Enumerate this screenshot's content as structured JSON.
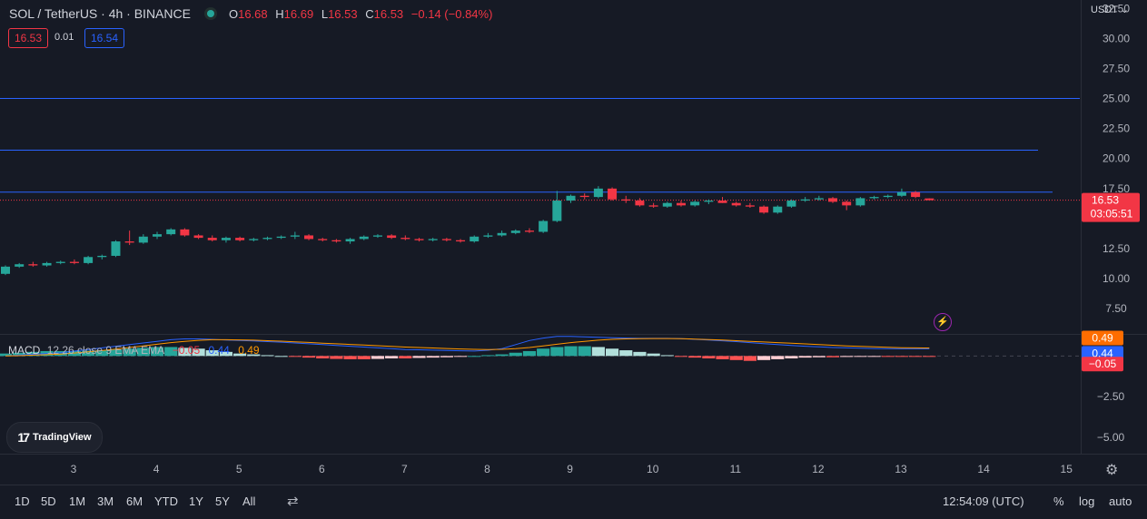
{
  "header": {
    "symbol": "SOL / TetherUS · 4h · BINANCE",
    "ohlc": {
      "o_key": "O",
      "o_val": "16.68",
      "h_key": "H",
      "h_val": "16.69",
      "l_key": "L",
      "l_val": "16.53",
      "c_key": "C",
      "c_val": "16.53",
      "change": "−0.14 (−0.84%)"
    },
    "bid": "16.53",
    "spread": "0.01",
    "ask": "16.54"
  },
  "currency_label": "USDT ⌄",
  "last_price_label": "16.53",
  "countdown_label": "03:05:51",
  "macd": {
    "title": "MACD",
    "params": "12 26 close 9 EMA EMA",
    "hist_value": "−0.05",
    "macd_value": "0.44",
    "signal_value": "0.49",
    "label_signal": "0.49",
    "label_macd": "0.44",
    "label_hist": "−0.05"
  },
  "watermark": "TradingView",
  "bottom_bar": {
    "ranges": [
      "1D",
      "5D",
      "1M",
      "3M",
      "6M",
      "YTD",
      "1Y",
      "5Y",
      "All"
    ],
    "clock": "12:54:09 (UTC)",
    "percent": "%",
    "log": "log",
    "auto": "auto"
  },
  "colors": {
    "up": "#26a69a",
    "down": "#f23645",
    "hline": "#2962ff",
    "macd_line": "#2962ff",
    "signal_line": "#ff9800",
    "background": "#161a25"
  },
  "icons": [
    "lightning-icon",
    "gear-icon",
    "calendar-range-icon",
    "tradingview-logo-icon"
  ],
  "chart_data": {
    "type": "candlestick",
    "timeframe": "4h",
    "x_ticks": [
      "3",
      "4",
      "5",
      "6",
      "7",
      "8",
      "9",
      "10",
      "11",
      "12",
      "13",
      "14",
      "15"
    ],
    "y_ticks": [
      "32.50",
      "30.00",
      "27.50",
      "25.00",
      "22.50",
      "20.00",
      "17.50",
      "12.50",
      "10.00",
      "7.50"
    ],
    "ylim": [
      5.4,
      33.2
    ],
    "horizontal_levels": [
      25.0,
      20.7,
      17.2
    ],
    "candles": [
      [
        10.4,
        11.1,
        10.3,
        11.0
      ],
      [
        11.0,
        11.3,
        10.9,
        11.2
      ],
      [
        11.2,
        11.4,
        11.0,
        11.1
      ],
      [
        11.1,
        11.4,
        11.0,
        11.3
      ],
      [
        11.3,
        11.5,
        11.2,
        11.4
      ],
      [
        11.4,
        11.6,
        11.2,
        11.3
      ],
      [
        11.3,
        11.9,
        11.2,
        11.8
      ],
      [
        11.8,
        12.0,
        11.6,
        11.9
      ],
      [
        11.9,
        13.2,
        11.8,
        13.1
      ],
      [
        13.1,
        14.0,
        12.8,
        13.0
      ],
      [
        13.0,
        13.7,
        12.9,
        13.5
      ],
      [
        13.5,
        13.9,
        13.3,
        13.7
      ],
      [
        13.7,
        14.2,
        13.6,
        14.1
      ],
      [
        14.1,
        14.2,
        13.5,
        13.6
      ],
      [
        13.6,
        13.7,
        13.3,
        13.4
      ],
      [
        13.4,
        13.6,
        13.1,
        13.2
      ],
      [
        13.2,
        13.5,
        13.0,
        13.4
      ],
      [
        13.4,
        13.5,
        13.1,
        13.2
      ],
      [
        13.2,
        13.4,
        13.1,
        13.3
      ],
      [
        13.3,
        13.5,
        13.2,
        13.4
      ],
      [
        13.4,
        13.6,
        13.3,
        13.5
      ],
      [
        13.5,
        13.9,
        13.3,
        13.6
      ],
      [
        13.6,
        13.7,
        13.2,
        13.3
      ],
      [
        13.3,
        13.4,
        13.1,
        13.2
      ],
      [
        13.2,
        13.3,
        13.0,
        13.1
      ],
      [
        13.1,
        13.4,
        12.9,
        13.3
      ],
      [
        13.3,
        13.6,
        13.2,
        13.5
      ],
      [
        13.5,
        13.7,
        13.4,
        13.6
      ],
      [
        13.6,
        13.7,
        13.3,
        13.4
      ],
      [
        13.4,
        13.6,
        13.2,
        13.3
      ],
      [
        13.3,
        13.4,
        13.1,
        13.2
      ],
      [
        13.2,
        13.4,
        13.1,
        13.3
      ],
      [
        13.3,
        13.4,
        13.1,
        13.2
      ],
      [
        13.2,
        13.3,
        13.0,
        13.1
      ],
      [
        13.1,
        13.6,
        13.0,
        13.5
      ],
      [
        13.5,
        13.8,
        13.4,
        13.6
      ],
      [
        13.6,
        14.0,
        13.5,
        13.8
      ],
      [
        13.8,
        14.1,
        13.7,
        14.0
      ],
      [
        14.0,
        14.2,
        13.8,
        13.9
      ],
      [
        13.9,
        14.9,
        13.8,
        14.8
      ],
      [
        14.8,
        17.3,
        14.7,
        16.5
      ],
      [
        16.5,
        17.0,
        16.3,
        16.9
      ],
      [
        16.9,
        17.1,
        16.6,
        16.8
      ],
      [
        16.8,
        17.7,
        16.7,
        17.5
      ],
      [
        17.5,
        17.6,
        16.5,
        16.6
      ],
      [
        16.6,
        16.9,
        16.3,
        16.5
      ],
      [
        16.5,
        16.7,
        16.0,
        16.1
      ],
      [
        16.1,
        16.3,
        15.9,
        16.0
      ],
      [
        16.0,
        16.4,
        15.9,
        16.3
      ],
      [
        16.3,
        16.5,
        16.0,
        16.1
      ],
      [
        16.1,
        16.5,
        16.0,
        16.4
      ],
      [
        16.4,
        16.6,
        16.2,
        16.5
      ],
      [
        16.5,
        16.8,
        16.3,
        16.3
      ],
      [
        16.3,
        16.4,
        16.0,
        16.1
      ],
      [
        16.1,
        16.3,
        15.9,
        16.0
      ],
      [
        16.0,
        16.1,
        15.4,
        15.5
      ],
      [
        15.5,
        16.1,
        15.4,
        16.0
      ],
      [
        16.0,
        16.6,
        15.9,
        16.5
      ],
      [
        16.5,
        16.8,
        16.4,
        16.6
      ],
      [
        16.6,
        16.9,
        16.5,
        16.7
      ],
      [
        16.7,
        16.8,
        16.3,
        16.4
      ],
      [
        16.4,
        16.5,
        15.7,
        16.1
      ],
      [
        16.1,
        16.8,
        16.0,
        16.7
      ],
      [
        16.7,
        16.9,
        16.6,
        16.8
      ],
      [
        16.8,
        17.0,
        16.7,
        16.9
      ],
      [
        16.9,
        17.5,
        16.8,
        17.2
      ],
      [
        17.2,
        17.3,
        16.7,
        16.8
      ],
      [
        16.68,
        16.69,
        16.53,
        16.53
      ]
    ],
    "macd": {
      "ylim": [
        -6.0,
        1.3
      ],
      "y_ticks": [
        "−2.50",
        "−5.00"
      ],
      "histogram": [
        0.15,
        0.2,
        0.25,
        0.3,
        0.3,
        0.3,
        0.32,
        0.35,
        0.4,
        0.45,
        0.5,
        0.55,
        0.55,
        0.5,
        0.45,
        0.35,
        0.25,
        0.15,
        0.1,
        0.05,
        0.0,
        -0.05,
        -0.1,
        -0.15,
        -0.18,
        -0.2,
        -0.2,
        -0.18,
        -0.15,
        -0.15,
        -0.12,
        -0.1,
        -0.08,
        -0.05,
        0.0,
        0.05,
        0.1,
        0.2,
        0.3,
        0.45,
        0.55,
        0.6,
        0.6,
        0.55,
        0.45,
        0.35,
        0.25,
        0.15,
        0.05,
        -0.05,
        -0.1,
        -0.15,
        -0.2,
        -0.25,
        -0.3,
        -0.25,
        -0.2,
        -0.15,
        -0.1,
        -0.08,
        -0.08,
        -0.06,
        -0.05,
        -0.04,
        -0.04,
        -0.05,
        -0.05,
        -0.05
      ],
      "macd_line": [
        0.0,
        0.05,
        0.1,
        0.15,
        0.2,
        0.3,
        0.4,
        0.5,
        0.6,
        0.7,
        0.8,
        0.9,
        1.0,
        1.05,
        1.05,
        1.02,
        0.98,
        0.95,
        0.92,
        0.88,
        0.85,
        0.8,
        0.75,
        0.7,
        0.65,
        0.6,
        0.55,
        0.5,
        0.45,
        0.4,
        0.38,
        0.36,
        0.34,
        0.32,
        0.3,
        0.35,
        0.45,
        0.7,
        0.95,
        1.1,
        1.2,
        1.2,
        1.18,
        1.15,
        1.12,
        1.1,
        1.08,
        1.08,
        1.08,
        1.06,
        1.02,
        0.98,
        0.93,
        0.88,
        0.82,
        0.76,
        0.7,
        0.64,
        0.6,
        0.56,
        0.52,
        0.5,
        0.48,
        0.46,
        0.45,
        0.44,
        0.44,
        0.44
      ],
      "signal_line": [
        0.0,
        0.02,
        0.05,
        0.08,
        0.12,
        0.18,
        0.25,
        0.33,
        0.42,
        0.52,
        0.62,
        0.72,
        0.82,
        0.9,
        0.96,
        1.0,
        1.0,
        0.99,
        0.97,
        0.94,
        0.91,
        0.87,
        0.83,
        0.79,
        0.75,
        0.71,
        0.67,
        0.63,
        0.59,
        0.55,
        0.52,
        0.49,
        0.46,
        0.43,
        0.41,
        0.4,
        0.41,
        0.45,
        0.52,
        0.62,
        0.72,
        0.82,
        0.9,
        0.97,
        1.02,
        1.05,
        1.06,
        1.07,
        1.07,
        1.06,
        1.04,
        1.01,
        0.98,
        0.94,
        0.9,
        0.86,
        0.82,
        0.78,
        0.74,
        0.7,
        0.66,
        0.62,
        0.59,
        0.56,
        0.53,
        0.51,
        0.5,
        0.49
      ]
    }
  }
}
